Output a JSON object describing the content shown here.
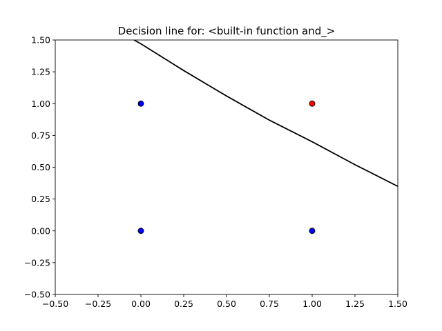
{
  "chart_data": {
    "type": "scatter",
    "title": "Decision line for: <built-in function and_>",
    "xlabel": "",
    "ylabel": "",
    "xlim": [
      -0.5,
      1.5
    ],
    "ylim": [
      -0.5,
      1.5
    ],
    "xticks": [
      -0.5,
      -0.25,
      0.0,
      0.25,
      0.5,
      0.75,
      1.0,
      1.25,
      1.5
    ],
    "yticks": [
      -0.5,
      -0.25,
      0.0,
      0.25,
      0.5,
      0.75,
      1.0,
      1.25,
      1.5
    ],
    "xtick_labels": [
      "−0.50",
      "−0.25",
      "0.00",
      "0.25",
      "0.50",
      "0.75",
      "1.00",
      "1.25",
      "1.50"
    ],
    "ytick_labels": [
      "−0.50",
      "−0.25",
      "0.00",
      "0.25",
      "0.50",
      "0.75",
      "1.00",
      "1.25",
      "1.50"
    ],
    "grid": false,
    "points": [
      {
        "x": 0,
        "y": 0,
        "color": "#0000ff"
      },
      {
        "x": 0,
        "y": 1,
        "color": "#0000ff"
      },
      {
        "x": 1,
        "y": 0,
        "color": "#0000ff"
      },
      {
        "x": 1,
        "y": 1,
        "color": "#ff0000"
      }
    ],
    "decision_line": {
      "color": "#000000",
      "x": [
        -0.04,
        0.0,
        0.25,
        0.5,
        0.75,
        1.0,
        1.25,
        1.5
      ],
      "y": [
        1.5,
        1.47,
        1.26,
        1.06,
        0.87,
        0.7,
        0.52,
        0.35
      ]
    }
  }
}
